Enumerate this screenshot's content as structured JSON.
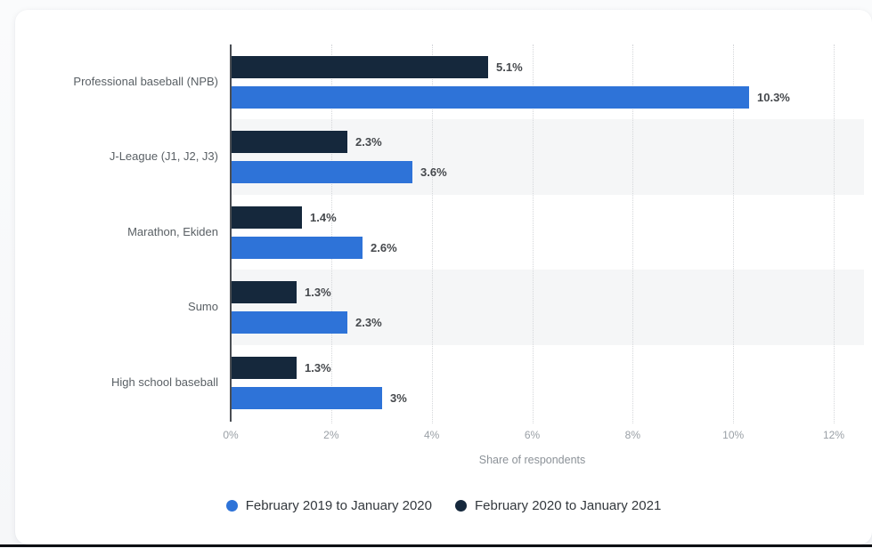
{
  "chart_data": {
    "type": "bar",
    "orientation": "horizontal",
    "categories": [
      "Professional baseball (NPB)",
      "J-League (J1, J2, J3)",
      "Marathon, Ekiden",
      "Sumo",
      "High school baseball"
    ],
    "series": [
      {
        "name": "February 2019 to January 2020",
        "color": "#2e73d8",
        "values": [
          10.3,
          3.6,
          2.6,
          2.3,
          3
        ],
        "labels": [
          "10.3%",
          "3.6%",
          "2.6%",
          "2.3%",
          "3%"
        ]
      },
      {
        "name": "February 2020 to January 2021",
        "color": "#15283c",
        "values": [
          5.1,
          2.3,
          1.4,
          1.3,
          1.3
        ],
        "labels": [
          "5.1%",
          "2.3%",
          "1.4%",
          "1.3%",
          "1.3%"
        ]
      }
    ],
    "bar_render_order_top_to_bottom": [
      "February 2020 to January 2021",
      "February 2019 to January 2020"
    ],
    "title": "",
    "xlabel": "Share of respondents",
    "ylabel": "",
    "x_ticks": [
      "0%",
      "2%",
      "4%",
      "6%",
      "8%",
      "10%",
      "12%"
    ],
    "x_tick_values": [
      0,
      2,
      4,
      6,
      8,
      10,
      12
    ],
    "xlim": [
      0,
      12
    ],
    "grid": "vertical-dotted",
    "row_stripe_indices": [
      1,
      3
    ],
    "legend_position": "bottom"
  },
  "colors": {
    "page_background": "#f7f8fa",
    "card_background": "#ffffff",
    "stripe": "#f5f6f7",
    "gridline": "#d5d7da",
    "axis_line": "#4a4e54",
    "tick_label": "#9aa0a6",
    "axis_title": "#8c9298",
    "category_label": "#5a6065",
    "value_label": "#46494d",
    "legend_text": "#33383d",
    "bottom_edge": "#0c0e12"
  }
}
